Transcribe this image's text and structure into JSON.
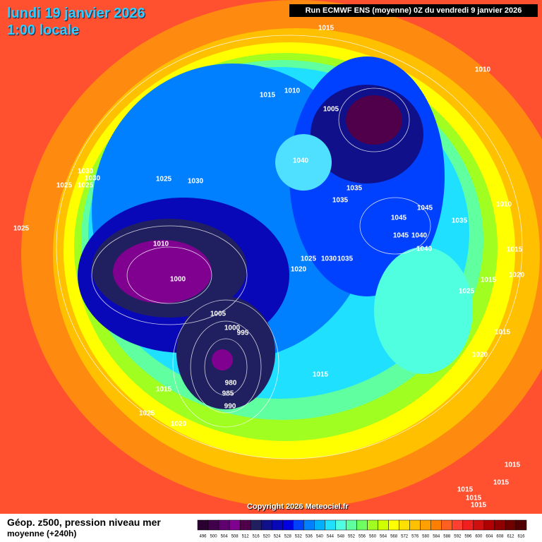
{
  "header": {
    "date": "lundi 19 janvier 2026",
    "time": "1:00 locale",
    "run": "Run ECMWF ENS (moyenne) 0Z du vendredi 9 janvier 2026"
  },
  "map": {
    "isobar_labels": [
      1015,
      1010,
      1015,
      1010,
      1005,
      1040,
      1030,
      1030,
      1025,
      1025,
      1025,
      1030,
      1035,
      1035,
      1010,
      1045,
      1045,
      1035,
      1045,
      1040,
      1025,
      1010,
      1040,
      1015,
      1025,
      1030,
      1035,
      1020,
      1020,
      1000,
      1015,
      1025,
      1005,
      1000,
      995,
      1015,
      1020,
      1015,
      980,
      1015,
      985,
      990,
      1025,
      1020,
      1015,
      1015,
      1015,
      1015,
      1015
    ]
  },
  "footer": {
    "title": "Géop. z500, pression niveau mer",
    "subtitle": "moyenne  (+240h)",
    "copyright": "Copyright 2026 Meteociel.fr"
  },
  "legend": {
    "values": [
      496,
      500,
      504,
      508,
      512,
      516,
      520,
      524,
      528,
      532,
      536,
      540,
      544,
      548,
      552,
      556,
      560,
      564,
      568,
      572,
      576,
      580,
      584,
      588,
      592,
      596,
      600,
      604,
      608,
      612,
      616
    ],
    "colors": [
      "#2a0030",
      "#40004a",
      "#600070",
      "#800090",
      "#50004a",
      "#202060",
      "#10108a",
      "#0808b8",
      "#0000e0",
      "#0040ff",
      "#0080ff",
      "#00b0ff",
      "#20e0ff",
      "#50ffe0",
      "#60ffa0",
      "#70ff60",
      "#a0ff20",
      "#d0ff00",
      "#ffff00",
      "#ffe000",
      "#ffc000",
      "#ffa000",
      "#ff8000",
      "#ff6020",
      "#ff4030",
      "#f02020",
      "#d01010",
      "#b00000",
      "#900000",
      "#700000",
      "#500000"
    ]
  }
}
